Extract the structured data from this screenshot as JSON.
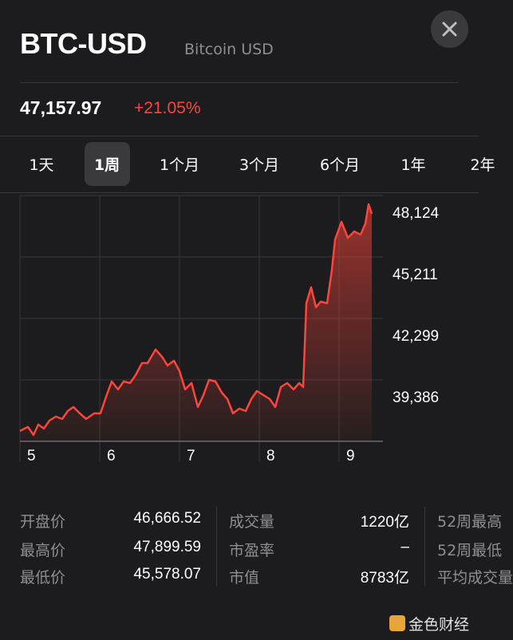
{
  "header": {
    "title": "BTC-USD",
    "subtitle": "Bitcoin USD"
  },
  "quote": {
    "price": "47,157.97",
    "change": "+21.05%"
  },
  "tabs": [
    "1天",
    "1周",
    "1个月",
    "3个月",
    "6个月",
    "1年",
    "2年"
  ],
  "selected_tab": 1,
  "chart_data": {
    "type": "area",
    "x": [
      5.0,
      5.1,
      5.17,
      5.23,
      5.3,
      5.37,
      5.45,
      5.53,
      5.6,
      5.67,
      5.75,
      5.83,
      5.93,
      6.01,
      6.07,
      6.15,
      6.23,
      6.3,
      6.38,
      6.45,
      6.53,
      6.6,
      6.7,
      6.78,
      6.85,
      6.93,
      7.0,
      7.07,
      7.15,
      7.23,
      7.3,
      7.37,
      7.45,
      7.53,
      7.6,
      7.67,
      7.75,
      7.83,
      7.9,
      7.97,
      8.05,
      8.13,
      8.2,
      8.27,
      8.35,
      8.43,
      8.5,
      8.55,
      8.59,
      8.65,
      8.71,
      8.77,
      8.85,
      8.91,
      8.95,
      9.03,
      9.11,
      9.19,
      9.27,
      9.33,
      9.37,
      9.41
    ],
    "values": [
      36964,
      37153,
      36775,
      37267,
      37078,
      37456,
      37645,
      37532,
      37910,
      38099,
      37796,
      37532,
      37796,
      37796,
      38477,
      39310,
      38931,
      39310,
      39234,
      39612,
      40180,
      40180,
      40823,
      40482,
      40066,
      40293,
      39801,
      38931,
      39234,
      38099,
      38666,
      39385,
      39310,
      38780,
      38477,
      37796,
      38023,
      37910,
      38477,
      38856,
      38666,
      38477,
      38099,
      39045,
      39234,
      38931,
      39234,
      39045,
      43017,
      43774,
      42828,
      43093,
      43017,
      44606,
      46043,
      46876,
      46119,
      46422,
      46270,
      46800,
      47708,
      47254
    ],
    "color": "#ff453a",
    "xlim": [
      5,
      9.55
    ],
    "xticks": [
      5,
      6,
      7,
      8,
      9
    ],
    "ylim": [
      36473,
      48124
    ],
    "yticks": [
      {
        "value": 48124,
        "label": "48,124"
      },
      {
        "value": 45211,
        "label": "45,211"
      },
      {
        "value": 42299,
        "label": "42,299"
      },
      {
        "value": 39386,
        "label": "39,386"
      }
    ],
    "grid": true
  },
  "stats": [
    [
      {
        "label": "开盘价",
        "value": "46,666.52"
      },
      {
        "label": "最高价",
        "value": "47,899.59"
      },
      {
        "label": "最低价",
        "value": "45,578.07"
      }
    ],
    [
      {
        "label": "成交量",
        "value": "1220亿"
      },
      {
        "label": "市盈率",
        "value": "–"
      },
      {
        "label": "市值",
        "value": "8783亿"
      }
    ],
    [
      {
        "label": "52周最高"
      },
      {
        "label": "52周最低"
      },
      {
        "label": "平均成交量"
      }
    ]
  ],
  "watermark": "金色财经"
}
